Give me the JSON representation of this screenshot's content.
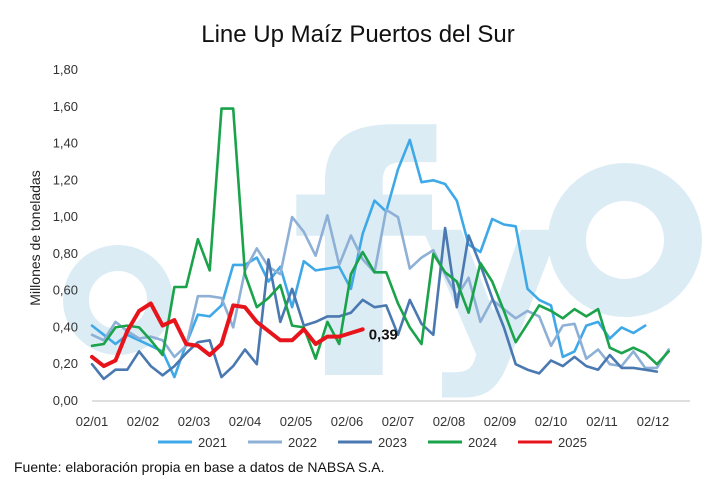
{
  "chart_data": {
    "type": "line",
    "title": "Line Up Maíz Puertos del Sur",
    "ylabel": "Millones de toneladas",
    "xlabel": "",
    "ylim": [
      0,
      1.8
    ],
    "yticks": [
      "0,00",
      "0,20",
      "0,40",
      "0,60",
      "0,80",
      "1,00",
      "1,20",
      "1,40",
      "1,60",
      "1,80"
    ],
    "xticks": [
      "02/01",
      "02/02",
      "02/03",
      "02/04",
      "02/05",
      "02/06",
      "02/07",
      "02/08",
      "02/09",
      "02/10",
      "02/11",
      "02/12"
    ],
    "grid": false,
    "legend_position": "bottom",
    "annotation": "0,39",
    "series": [
      {
        "name": "2021",
        "color": "#3fa9e8",
        "values": [
          0.41,
          0.36,
          0.31,
          0.36,
          0.33,
          0.3,
          0.27,
          0.13,
          0.31,
          0.47,
          0.46,
          0.52,
          0.74,
          0.74,
          0.78,
          0.65,
          0.73,
          0.51,
          0.76,
          0.71,
          0.72,
          0.73,
          0.61,
          0.91,
          1.09,
          1.03,
          1.26,
          1.42,
          1.19,
          1.2,
          1.18,
          1.09,
          0.85,
          0.81,
          0.99,
          0.96,
          0.95,
          0.61,
          0.55,
          0.52,
          0.24,
          0.27,
          0.41,
          0.43,
          0.34,
          0.4,
          0.37,
          0.41
        ]
      },
      {
        "name": "2022",
        "color": "#8eb0d6",
        "values": [
          0.36,
          0.33,
          0.43,
          0.38,
          0.34,
          0.35,
          0.33,
          0.24,
          0.3,
          0.57,
          0.57,
          0.56,
          0.4,
          0.71,
          0.83,
          0.73,
          0.69,
          1.0,
          0.92,
          0.79,
          1.01,
          0.74,
          0.9,
          0.77,
          0.7,
          1.04,
          1.0,
          0.72,
          0.78,
          0.82,
          0.69,
          0.57,
          0.67,
          0.43,
          0.55,
          0.5,
          0.45,
          0.49,
          0.46,
          0.3,
          0.41,
          0.42,
          0.23,
          0.28,
          0.2,
          0.19,
          0.27,
          0.18,
          0.18,
          0.28
        ]
      },
      {
        "name": "2023",
        "color": "#4a78b0",
        "values": [
          0.2,
          0.12,
          0.17,
          0.17,
          0.27,
          0.19,
          0.14,
          0.19,
          0.26,
          0.32,
          0.33,
          0.13,
          0.19,
          0.28,
          0.2,
          0.77,
          0.43,
          0.61,
          0.41,
          0.43,
          0.46,
          0.46,
          0.48,
          0.55,
          0.51,
          0.52,
          0.36,
          0.55,
          0.42,
          0.36,
          0.94,
          0.51,
          0.9,
          0.74,
          0.56,
          0.4,
          0.2,
          0.17,
          0.15,
          0.22,
          0.19,
          0.24,
          0.19,
          0.17,
          0.25,
          0.18,
          0.18,
          0.17,
          0.16
        ]
      },
      {
        "name": "2024",
        "color": "#1aa34a",
        "values": [
          0.3,
          0.31,
          0.4,
          0.41,
          0.4,
          0.33,
          0.25,
          0.62,
          0.62,
          0.88,
          0.71,
          1.59,
          1.59,
          0.69,
          0.51,
          0.56,
          0.63,
          0.41,
          0.4,
          0.23,
          0.43,
          0.31,
          0.69,
          0.81,
          0.7,
          0.7,
          0.53,
          0.4,
          0.31,
          0.8,
          0.7,
          0.65,
          0.48,
          0.75,
          0.65,
          0.49,
          0.32,
          0.42,
          0.52,
          0.49,
          0.45,
          0.5,
          0.46,
          0.5,
          0.29,
          0.26,
          0.29,
          0.26,
          0.2,
          0.27
        ]
      },
      {
        "name": "2025",
        "color": "#e8141b",
        "values": [
          0.24,
          0.19,
          0.22,
          0.38,
          0.49,
          0.53,
          0.41,
          0.44,
          0.31,
          0.3,
          0.25,
          0.31,
          0.52,
          0.51,
          0.43,
          0.38,
          0.33,
          0.33,
          0.39,
          0.31,
          0.35,
          0.35,
          0.37,
          0.39
        ]
      }
    ]
  },
  "source": "Fuente: elaboración propia en base a datos de NABSA S.A."
}
